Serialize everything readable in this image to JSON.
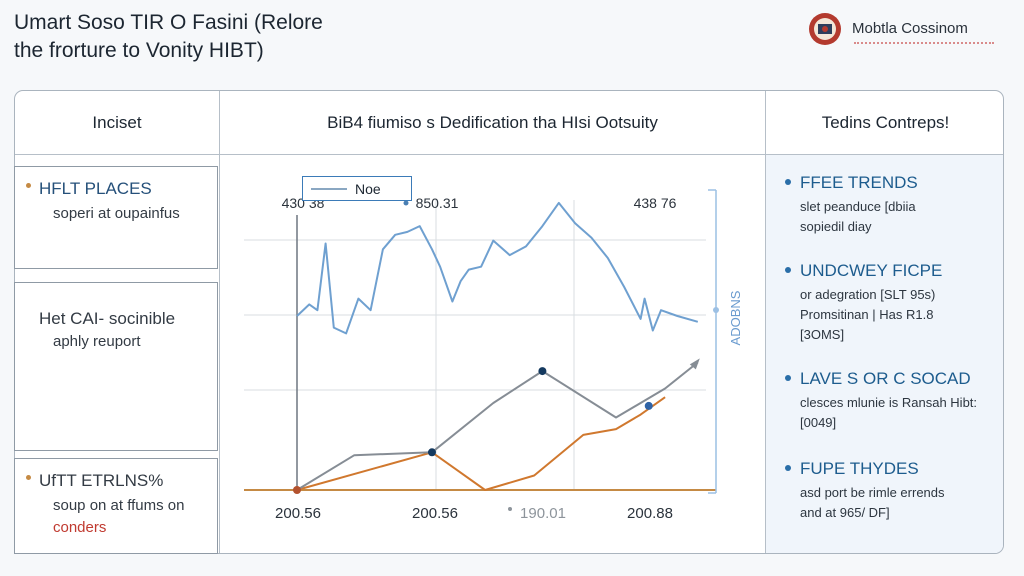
{
  "page": {
    "title_line1": "Umart Soso TIR O Fasini (Relore",
    "title_line2": "the frorture to Vonity HIBT)"
  },
  "brand": {
    "name": "Mobtla Cossinom"
  },
  "columns": {
    "left_header": "Inciset",
    "center_header": "BiB4 fiumiso s Dedification tha HIsi Ootsuity",
    "right_header": "Tedins Contreps!"
  },
  "left_cards": [
    {
      "title": "HFLT PLACES",
      "line1": "soperi at oupainfus",
      "line2": ""
    },
    {
      "title": "Het CAI- socinible",
      "line1": "aphly reuport",
      "line2": ""
    },
    {
      "title": "UfTT ETRLNS%",
      "line1": "soup on at ffums on",
      "line2": "conders"
    }
  ],
  "trends": [
    {
      "title": "FFEE TRENDS",
      "line1": "slet peanduce [dbiia",
      "line2": "sopiedil diay"
    },
    {
      "title": "UNDCWEY FICPE",
      "line1": "or adegration [SLT 95s)",
      "line2": "Promsitinan | Has R1.8"
    },
    {
      "title": "LAVE S OR C SOCAD",
      "line1": "clesces mlunie is Ransah Hibt:",
      "line2": "[0049]"
    },
    {
      "title": "FUPE THYDES",
      "line1": "asd port be rimle errends",
      "line2": "and at 965/ DF]"
    }
  ],
  "extra_trend_line": "[3OMS]",
  "colors": {
    "blue_line": "#6fa0d0",
    "gray_line": "#868d95",
    "orange_line": "#d0782e",
    "accent": "#1d5c8e"
  },
  "chart_data": {
    "type": "line",
    "title": "BiB4 fiumiso s Dedification tha HIsi Ootsuity",
    "legend": "Noe",
    "legend_position": "top-left",
    "top_labels": [
      "430 38",
      "850.31",
      "438 76"
    ],
    "x": [
      "200.56",
      "200.56",
      "190.01",
      "200.88"
    ],
    "ylabel": "ADOBNS",
    "ylim": [
      0,
      100
    ],
    "series": [
      {
        "name": "blue",
        "values": [
          [
            0,
            60
          ],
          [
            3,
            64
          ],
          [
            5,
            62
          ],
          [
            7,
            85
          ],
          [
            9,
            56
          ],
          [
            12,
            54
          ],
          [
            15,
            66
          ],
          [
            18,
            62
          ],
          [
            21,
            83
          ],
          [
            24,
            88
          ],
          [
            27,
            89
          ],
          [
            30,
            91
          ],
          [
            33,
            83
          ],
          [
            35,
            77
          ],
          [
            38,
            65
          ],
          [
            40,
            72
          ],
          [
            42,
            76
          ],
          [
            45,
            77
          ],
          [
            48,
            86
          ],
          [
            52,
            81
          ],
          [
            56,
            84
          ],
          [
            60,
            91
          ],
          [
            64,
            99
          ],
          [
            68,
            92
          ],
          [
            72,
            87
          ],
          [
            76,
            80
          ],
          [
            80,
            70
          ],
          [
            84,
            59
          ],
          [
            85,
            66
          ],
          [
            87,
            55
          ],
          [
            89,
            62
          ],
          [
            93,
            60
          ],
          [
            98,
            58
          ]
        ]
      },
      {
        "name": "gray",
        "values": [
          [
            0,
            0
          ],
          [
            14,
            12
          ],
          [
            33,
            13
          ],
          [
            48,
            30
          ],
          [
            60,
            41
          ],
          [
            78,
            25
          ],
          [
            90,
            35
          ],
          [
            98,
            44
          ]
        ]
      },
      {
        "name": "orange",
        "values": [
          [
            0,
            0
          ],
          [
            33,
            13
          ],
          [
            39,
            7
          ],
          [
            46,
            0
          ],
          [
            58,
            5
          ],
          [
            70,
            19
          ],
          [
            78,
            21
          ],
          [
            84,
            26
          ],
          [
            90,
            32
          ]
        ]
      }
    ],
    "markers": [
      {
        "series": "gray",
        "x": 0,
        "y": 0,
        "color": "#b3522e"
      },
      {
        "series": "gray",
        "x": 33,
        "y": 13,
        "color": "#14395f"
      },
      {
        "series": "gray",
        "x": 60,
        "y": 41,
        "color": "#14395f"
      },
      {
        "series": "orange",
        "x": 86,
        "y": 29,
        "color": "#2f63a6"
      }
    ]
  }
}
